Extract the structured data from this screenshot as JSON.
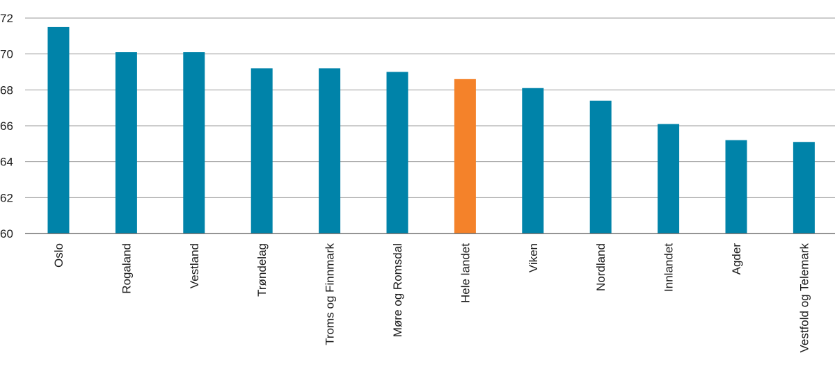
{
  "chart_data": {
    "type": "bar",
    "categories": [
      "Oslo",
      "Rogaland",
      "Vestland",
      "Trøndelag",
      "Troms og Finnmark",
      "Møre og Romsdal",
      "Hele landet",
      "Viken",
      "Nordland",
      "Innlandet",
      "Agder",
      "Vestfold og Telemark"
    ],
    "values": [
      71.5,
      70.1,
      70.1,
      69.2,
      69.2,
      69.0,
      68.6,
      68.1,
      67.4,
      66.1,
      65.2,
      65.1
    ],
    "highlight_category": "Hele landet",
    "ylim": [
      60,
      72
    ],
    "yticks": [
      60,
      62,
      64,
      66,
      68,
      70,
      72
    ],
    "grid": true,
    "legend": "none",
    "title": "",
    "xlabel": "",
    "ylabel": "",
    "colors": {
      "bar": "#0083a9",
      "highlight": "#f4822a"
    }
  }
}
